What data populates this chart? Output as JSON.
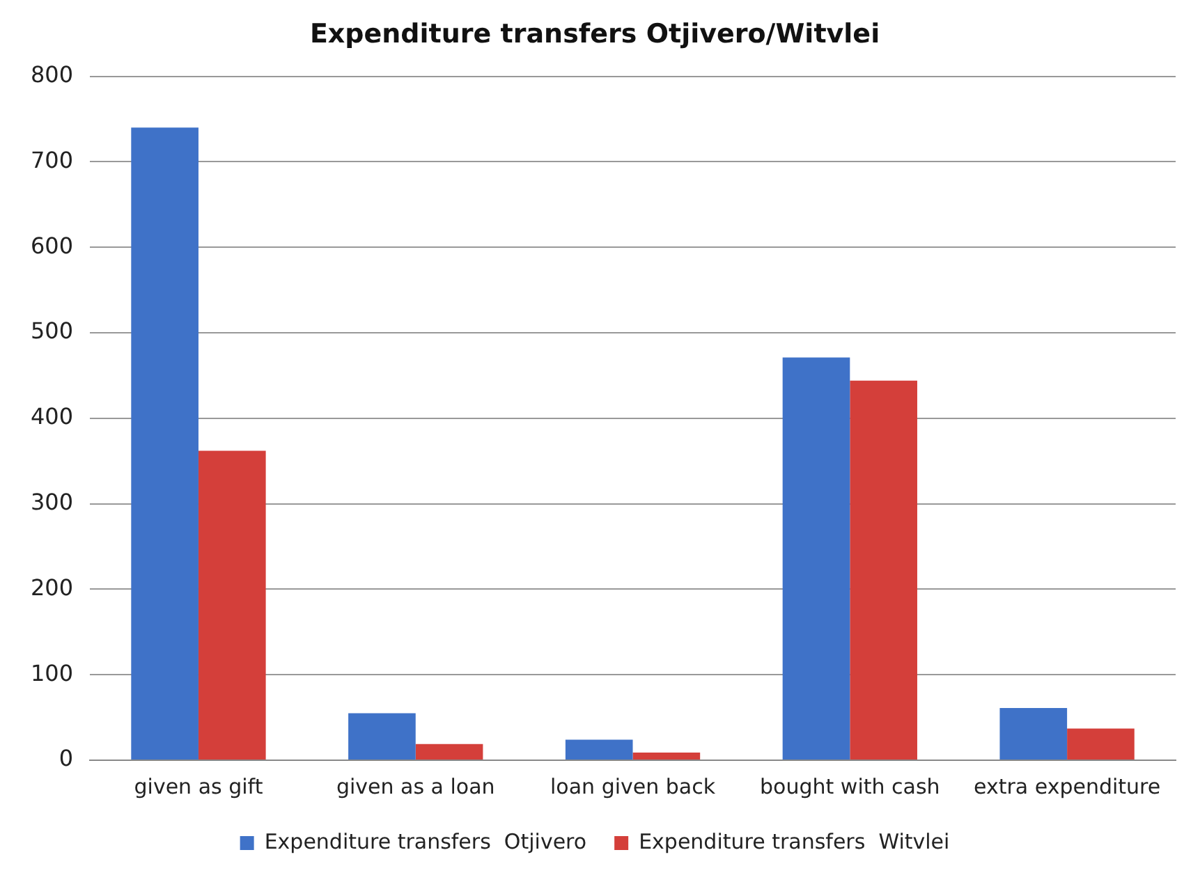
{
  "chart_data": {
    "type": "bar",
    "title": "Expenditure transfers Otjivero/Witvlei",
    "categories": [
      "given as gift",
      "given as a loan",
      "loan given back",
      "bought with cash",
      "extra expenditure"
    ],
    "series": [
      {
        "name": "Expenditure transfers  Otjivero",
        "color": "#3f72c8",
        "values": [
          740,
          55,
          24,
          471,
          61
        ]
      },
      {
        "name": "Expenditure transfers  Witvlei",
        "color": "#d43f3a",
        "values": [
          362,
          19,
          9,
          444,
          37
        ]
      }
    ],
    "ylim": [
      0,
      800
    ],
    "yticks": [
      0,
      100,
      200,
      300,
      400,
      500,
      600,
      700,
      800
    ],
    "grid": "y",
    "legend": "bottom"
  }
}
